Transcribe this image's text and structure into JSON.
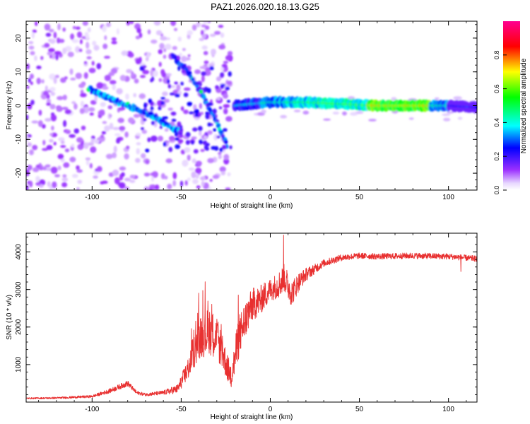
{
  "title": "PAZ1.2026.020.18.13.G25",
  "chart_data": [
    {
      "type": "heatmap",
      "name": "spectrogram",
      "xlabel": "Height of straight line (km)",
      "ylabel": "Frequency (Hz)",
      "xlim": [
        -137,
        116
      ],
      "ylim": [
        -25,
        25
      ],
      "xticks": [
        -100,
        -50,
        0,
        50,
        100
      ],
      "xtick_labels": [
        "-100",
        "-50",
        "0",
        "50",
        "100"
      ],
      "yticks": [
        -20,
        -10,
        0,
        10,
        20
      ],
      "ytick_labels": [
        "-20",
        "-10",
        "0",
        "10",
        "20"
      ],
      "features": [
        {
          "name": "main-tone",
          "x": [
            -20,
            0,
            20,
            40,
            60,
            80,
            100,
            116
          ],
          "freq": [
            0,
            1,
            1,
            0.5,
            0,
            0,
            0,
            -0.5
          ],
          "amplitude": 0.6
        },
        {
          "name": "descending-branch-1",
          "x": [
            -102,
            -90,
            -80,
            -70,
            -60,
            -50
          ],
          "freq": [
            5,
            2,
            0,
            -2,
            -5,
            -8
          ],
          "amplitude": 0.3
        },
        {
          "name": "descending-branch-2",
          "x": [
            -55,
            -45,
            -38,
            -30,
            -24
          ],
          "freq": [
            15,
            9,
            3,
            -5,
            -12
          ],
          "amplitude": 0.25
        }
      ],
      "colorbar": {
        "label": "Normalized spectral amplitude",
        "range": [
          0,
          1
        ],
        "ticks": [
          0.0,
          0.2,
          0.4,
          0.6,
          0.8
        ],
        "tick_labels": [
          "0.0",
          "0.2",
          "0.4",
          "0.6",
          "0.8"
        ]
      }
    },
    {
      "type": "line",
      "name": "snr",
      "xlabel": "Height of straight line (km)",
      "ylabel": "SNR (10 * v/v)",
      "xlim": [
        -137,
        116
      ],
      "ylim": [
        0,
        4500
      ],
      "xticks": [
        -100,
        -50,
        0,
        50,
        100
      ],
      "xtick_labels": [
        "-100",
        "-50",
        "0",
        "50",
        "100"
      ],
      "yticks": [
        1000,
        2000,
        3000,
        4000
      ],
      "ytick_labels": [
        "1000",
        "2000",
        "3000",
        "4000"
      ],
      "color": "#e83030",
      "series": [
        {
          "name": "SNR",
          "x": [
            -137,
            -120,
            -100,
            -90,
            -80,
            -75,
            -70,
            -60,
            -52,
            -46,
            -40,
            -34,
            -30,
            -26,
            -22,
            -18,
            -14,
            -10,
            -6,
            -2,
            0,
            4,
            8,
            12,
            16,
            20,
            25,
            30,
            40,
            50,
            60,
            80,
            100,
            116
          ],
          "y": [
            100,
            110,
            150,
            300,
            500,
            250,
            200,
            250,
            350,
            900,
            1700,
            1900,
            1700,
            1200,
            600,
            1700,
            2200,
            2600,
            2700,
            2900,
            3000,
            3100,
            3300,
            2900,
            3200,
            3400,
            3550,
            3700,
            3850,
            3900,
            3880,
            3900,
            3880,
            3820
          ],
          "noise": [
            20,
            25,
            35,
            60,
            80,
            50,
            40,
            60,
            120,
            300,
            550,
            650,
            550,
            450,
            250,
            600,
            500,
            450,
            400,
            350,
            300,
            350,
            400,
            350,
            250,
            180,
            130,
            100,
            90,
            80,
            80,
            80,
            80,
            80
          ],
          "spikes": [
            {
              "x": 7.5,
              "y": 4450
            },
            {
              "x": 107,
              "y": 3480
            }
          ]
        }
      ]
    }
  ]
}
